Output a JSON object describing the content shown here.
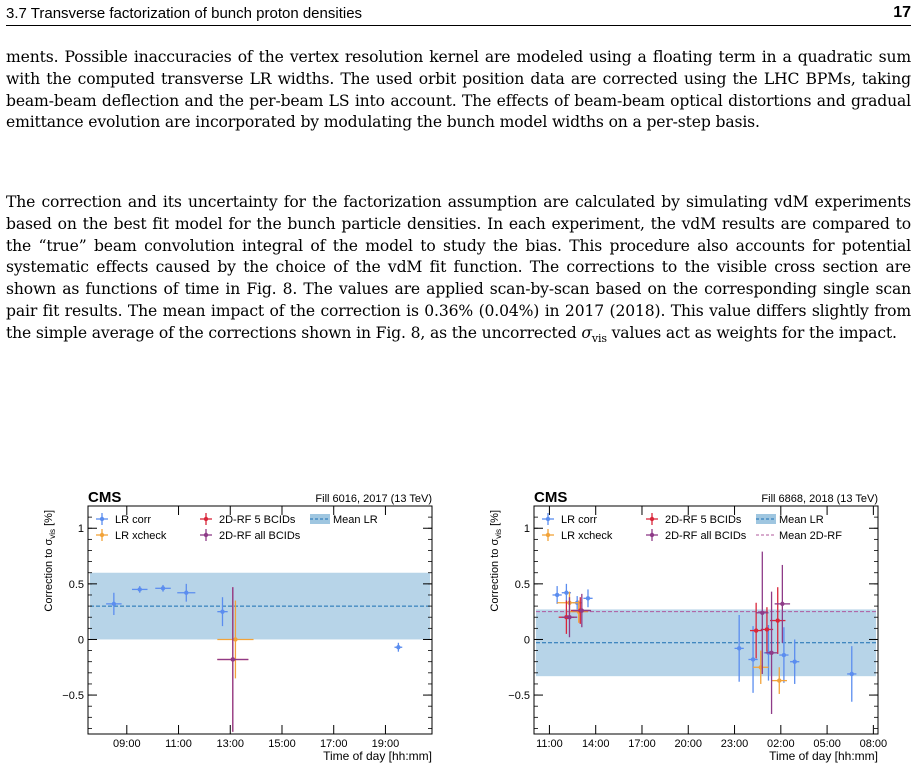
{
  "header": {
    "section": "3.7   Transverse factorization of bunch proton densities",
    "page_number": "17"
  },
  "paragraphs": [
    "ments. Possible inaccuracies of the vertex resolution kernel are modeled using a floating term in a quadratic sum with the computed transverse LR widths. The used orbit position data are corrected using the LHC BPMs, taking beam-beam deflection and the per-beam LS into account. The effects of beam-beam optical distortions and gradual emittance evolution are incorporated by modulating the bunch model widths on a per-step basis.",
    "The correction and its uncertainty for the factorization assumption are calculated by simulating vdM experiments based on the best fit model for the bunch particle densities. In each experiment, the vdM results are compared to the “true” beam convolution integral of the model to study the bias. This procedure also accounts for potential systematic effects caused by the choice of the vdM fit function. The corrections to the visible cross section are shown as functions of time in Fig. 8. The values are applied scan-by-scan based on the corresponding single scan pair fit results. The mean impact of the correction is 0.36% (0.04%) in 2017 (2018). This value differs slightly from the simple average of the corrections shown in Fig. 8, as the uncorrected"
  ],
  "paragraph_tail": {
    "sigma": "σ",
    "sub": "vis",
    "rest": " values act as weights for the impact."
  },
  "chart_data": [
    {
      "type": "scatter",
      "cms_label": "CMS",
      "fill_label": "Fill 6016, 2017 (13 TeV)",
      "ylabel_main": "Correction to σ",
      "ylabel_sub": "vis",
      "ylabel_unit": " [%]",
      "xlabel": "Time of day [hh:mm]",
      "xlim": [
        7.5,
        20.8
      ],
      "ylim": [
        -0.85,
        1.2
      ],
      "x_ticks": [
        9,
        11,
        13,
        15,
        17,
        19
      ],
      "x_tick_labels": [
        "09:00",
        "11:00",
        "13:00",
        "15:00",
        "17:00",
        "19:00"
      ],
      "y_ticks": [
        -0.5,
        0,
        0.5,
        1
      ],
      "y_tick_labels": [
        "−0.5",
        "0",
        "0.5",
        "1"
      ],
      "band": {
        "ymin": 0.0,
        "ymax": 0.6,
        "color": "#9fc6e0"
      },
      "mean_lines": [
        {
          "y": 0.3,
          "color": "#1a6fb3"
        }
      ],
      "legend": [
        {
          "label": "LR corr",
          "color": "#5b8def",
          "kind": "marker"
        },
        {
          "label": "2D-RF 5 BCIDs",
          "color": "#d9263a",
          "kind": "marker"
        },
        {
          "label": "Mean LR",
          "color": "#1a6fb3",
          "kind": "band"
        },
        {
          "label": "LR xcheck",
          "color": "#f2a33a",
          "kind": "marker"
        },
        {
          "label": "2D-RF all BCIDs",
          "color": "#8e3b88",
          "kind": "marker"
        }
      ],
      "series": [
        {
          "color": "#5b8def",
          "points": [
            {
              "x": 8.5,
              "y": 0.32,
              "xerr": 0.3,
              "yerr": 0.1
            },
            {
              "x": 9.5,
              "y": 0.45,
              "xerr": 0.3,
              "yerr": 0.03
            },
            {
              "x": 10.4,
              "y": 0.46,
              "xerr": 0.3,
              "yerr": 0.03
            },
            {
              "x": 11.3,
              "y": 0.42,
              "xerr": 0.35,
              "yerr": 0.08
            },
            {
              "x": 12.7,
              "y": 0.25,
              "xerr": 0.2,
              "yerr": 0.13
            },
            {
              "x": 19.5,
              "y": -0.07,
              "xerr": 0.15,
              "yerr": 0.04
            }
          ]
        },
        {
          "color": "#f2a33a",
          "points": [
            {
              "x": 13.2,
              "y": 0.0,
              "xerr": 0.7,
              "yerr": 0.35
            }
          ]
        },
        {
          "color": "#d9263a",
          "points": [
            {
              "x": 13.1,
              "y": -0.18,
              "xerr": 0.6,
              "yerr": 0.65
            }
          ]
        },
        {
          "color": "#8e3b88",
          "points": [
            {
              "x": 13.1,
              "y": -0.18,
              "xerr": 0.6,
              "yerr": 0.65
            }
          ]
        }
      ]
    },
    {
      "type": "scatter",
      "cms_label": "CMS",
      "fill_label": "Fill 6868, 2018 (13 TeV)",
      "ylabel_main": "Correction to σ",
      "ylabel_sub": "vis",
      "ylabel_unit": " [%]",
      "xlabel": "Time of day [hh:mm]",
      "xlim": [
        10,
        32.3
      ],
      "ylim": [
        -0.85,
        1.2
      ],
      "x_ticks": [
        11,
        14,
        17,
        20,
        23,
        26,
        29,
        32
      ],
      "x_tick_labels": [
        "11:00",
        "14:00",
        "17:00",
        "20:00",
        "23:00",
        "02:00",
        "05:00",
        "08:00"
      ],
      "y_ticks": [
        -0.5,
        0,
        0.5,
        1
      ],
      "y_tick_labels": [
        "−0.5",
        "0",
        "0.5",
        "1"
      ],
      "band": {
        "ymin": -0.33,
        "ymax": 0.27,
        "color": "#9fc6e0"
      },
      "mean_lines": [
        {
          "y": -0.03,
          "color": "#1a6fb3"
        },
        {
          "y": 0.25,
          "color": "#b05a9e"
        }
      ],
      "legend": [
        {
          "label": "LR corr",
          "color": "#5b8def",
          "kind": "marker"
        },
        {
          "label": "2D-RF 5 BCIDs",
          "color": "#d9263a",
          "kind": "marker"
        },
        {
          "label": "Mean LR",
          "color": "#1a6fb3",
          "kind": "band"
        },
        {
          "label": "LR xcheck",
          "color": "#f2a33a",
          "kind": "marker"
        },
        {
          "label": "2D-RF all BCIDs",
          "color": "#8e3b88",
          "kind": "marker"
        },
        {
          "label": "Mean 2D-RF",
          "color": "#b05a9e",
          "kind": "dash"
        }
      ],
      "series": [
        {
          "color": "#5b8def",
          "points": [
            {
              "x": 11.5,
              "y": 0.4,
              "xerr": 0.3,
              "yerr": 0.08
            },
            {
              "x": 12.1,
              "y": 0.42,
              "xerr": 0.3,
              "yerr": 0.08
            },
            {
              "x": 12.8,
              "y": 0.33,
              "xerr": 0.3,
              "yerr": 0.06
            },
            {
              "x": 13.5,
              "y": 0.37,
              "xerr": 0.3,
              "yerr": 0.08
            },
            {
              "x": 23.3,
              "y": -0.08,
              "xerr": 0.3,
              "yerr": 0.3
            },
            {
              "x": 24.2,
              "y": -0.18,
              "xerr": 0.3,
              "yerr": 0.3
            },
            {
              "x": 25.2,
              "y": -0.12,
              "xerr": 0.3,
              "yerr": 0.25
            },
            {
              "x": 26.2,
              "y": -0.14,
              "xerr": 0.3,
              "yerr": 0.25
            },
            {
              "x": 26.9,
              "y": -0.2,
              "xerr": 0.3,
              "yerr": 0.2
            },
            {
              "x": 30.6,
              "y": -0.31,
              "xerr": 0.3,
              "yerr": 0.25
            }
          ]
        },
        {
          "color": "#f2a33a",
          "points": [
            {
              "x": 12.3,
              "y": 0.33,
              "xerr": 0.8,
              "yerr": 0.1
            },
            {
              "x": 12.9,
              "y": 0.25,
              "xerr": 0.6,
              "yerr": 0.1
            },
            {
              "x": 24.7,
              "y": -0.25,
              "xerr": 0.5,
              "yerr": 0.15
            },
            {
              "x": 25.9,
              "y": -0.37,
              "xerr": 0.5,
              "yerr": 0.12
            }
          ]
        },
        {
          "color": "#d9263a",
          "points": [
            {
              "x": 12.1,
              "y": 0.2,
              "xerr": 0.5,
              "yerr": 0.15
            },
            {
              "x": 13.0,
              "y": 0.26,
              "xerr": 0.6,
              "yerr": 0.12
            },
            {
              "x": 24.4,
              "y": 0.08,
              "xerr": 0.4,
              "yerr": 0.25
            },
            {
              "x": 25.1,
              "y": 0.09,
              "xerr": 0.4,
              "yerr": 0.2
            },
            {
              "x": 25.8,
              "y": 0.17,
              "xerr": 0.5,
              "yerr": 0.3
            }
          ]
        },
        {
          "color": "#8e3b88",
          "points": [
            {
              "x": 12.3,
              "y": 0.2,
              "xerr": 0.5,
              "yerr": 0.18
            },
            {
              "x": 13.1,
              "y": 0.26,
              "xerr": 0.6,
              "yerr": 0.15
            },
            {
              "x": 24.8,
              "y": 0.24,
              "xerr": 0.4,
              "yerr": 0.55
            },
            {
              "x": 25.4,
              "y": -0.12,
              "xerr": 0.4,
              "yerr": 0.55
            },
            {
              "x": 26.1,
              "y": 0.32,
              "xerr": 0.5,
              "yerr": 0.35
            }
          ]
        }
      ]
    }
  ]
}
